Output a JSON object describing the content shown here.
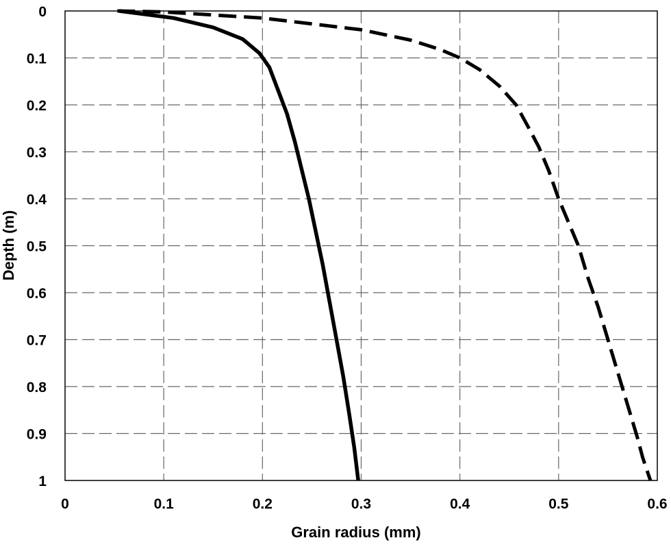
{
  "chart_data": {
    "type": "line",
    "title": "",
    "xlabel": "Grain radius  (mm)",
    "ylabel": "Depth  (m)",
    "xlim": [
      0,
      0.6
    ],
    "ylim": [
      0,
      1
    ],
    "y_inverted": true,
    "grid": true,
    "grid_style": "dashed",
    "legend": "none",
    "x_tick_labels": [
      "0",
      "0.1",
      "0.2",
      "0.3",
      "0.4",
      "0.5",
      "0.6"
    ],
    "x_ticks": [
      0,
      0.1,
      0.2,
      0.3,
      0.4,
      0.5,
      0.6
    ],
    "y_tick_labels": [
      "0",
      "0.1",
      "0.2",
      "0.3",
      "0.4",
      "0.5",
      "0.6",
      "0.7",
      "0.8",
      "0.9",
      "1"
    ],
    "y_ticks": [
      0,
      0.1,
      0.2,
      0.3,
      0.4,
      0.5,
      0.6,
      0.7,
      0.8,
      0.9,
      1.0
    ],
    "series": [
      {
        "line_style": "solid",
        "color": "#000000",
        "points": [
          {
            "x": 0.055,
            "y": 0.0
          },
          {
            "x": 0.11,
            "y": 0.015
          },
          {
            "x": 0.15,
            "y": 0.035
          },
          {
            "x": 0.18,
            "y": 0.06
          },
          {
            "x": 0.197,
            "y": 0.09
          },
          {
            "x": 0.207,
            "y": 0.12
          },
          {
            "x": 0.216,
            "y": 0.17
          },
          {
            "x": 0.225,
            "y": 0.22
          },
          {
            "x": 0.233,
            "y": 0.28
          },
          {
            "x": 0.24,
            "y": 0.34
          },
          {
            "x": 0.247,
            "y": 0.4
          },
          {
            "x": 0.254,
            "y": 0.47
          },
          {
            "x": 0.261,
            "y": 0.54
          },
          {
            "x": 0.268,
            "y": 0.62
          },
          {
            "x": 0.275,
            "y": 0.7
          },
          {
            "x": 0.282,
            "y": 0.78
          },
          {
            "x": 0.288,
            "y": 0.86
          },
          {
            "x": 0.293,
            "y": 0.93
          },
          {
            "x": 0.297,
            "y": 1.0
          }
        ]
      },
      {
        "line_style": "dashed",
        "color": "#000000",
        "points": [
          {
            "x": 0.053,
            "y": 0.0
          },
          {
            "x": 0.1,
            "y": 0.002
          },
          {
            "x": 0.2,
            "y": 0.015
          },
          {
            "x": 0.3,
            "y": 0.04
          },
          {
            "x": 0.35,
            "y": 0.062
          },
          {
            "x": 0.38,
            "y": 0.082
          },
          {
            "x": 0.4,
            "y": 0.1
          },
          {
            "x": 0.42,
            "y": 0.125
          },
          {
            "x": 0.44,
            "y": 0.16
          },
          {
            "x": 0.457,
            "y": 0.2
          },
          {
            "x": 0.47,
            "y": 0.25
          },
          {
            "x": 0.48,
            "y": 0.29
          },
          {
            "x": 0.49,
            "y": 0.34
          },
          {
            "x": 0.5,
            "y": 0.4
          },
          {
            "x": 0.51,
            "y": 0.45
          },
          {
            "x": 0.52,
            "y": 0.5
          },
          {
            "x": 0.53,
            "y": 0.57
          },
          {
            "x": 0.54,
            "y": 0.63
          },
          {
            "x": 0.55,
            "y": 0.7
          },
          {
            "x": 0.56,
            "y": 0.77
          },
          {
            "x": 0.57,
            "y": 0.84
          },
          {
            "x": 0.58,
            "y": 0.91
          },
          {
            "x": 0.585,
            "y": 0.95
          },
          {
            "x": 0.593,
            "y": 1.0
          }
        ]
      }
    ]
  }
}
